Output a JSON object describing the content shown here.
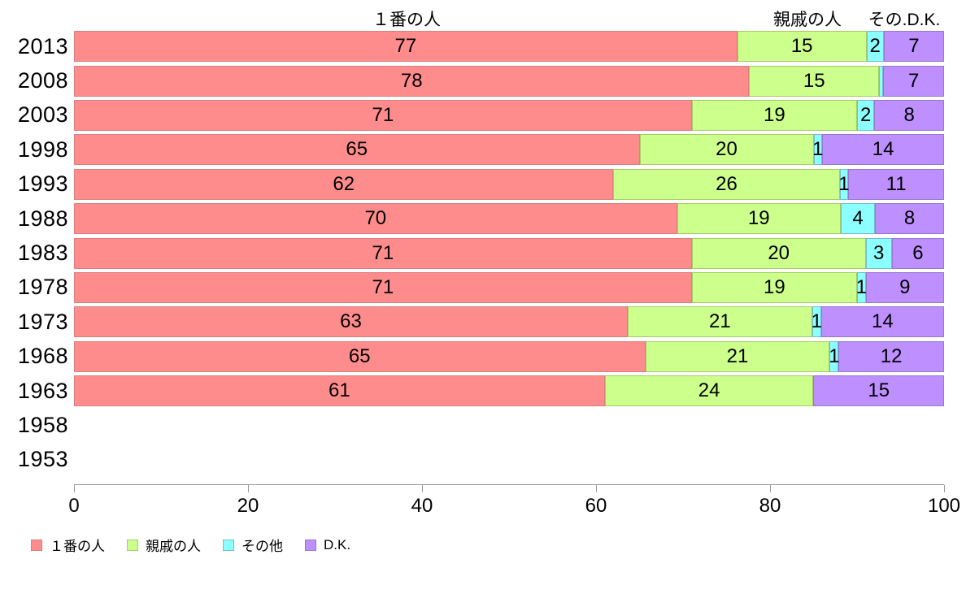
{
  "column_headers": [
    {
      "label": "１番の人"
    },
    {
      "label": "親戚の人"
    },
    {
      "label": "その.D.K."
    }
  ],
  "chart_data": {
    "type": "bar",
    "orientation": "horizontal",
    "stacked": true,
    "title": "",
    "xlabel": "",
    "ylabel": "",
    "xlim": [
      0,
      100
    ],
    "x_ticks": [
      0,
      20,
      40,
      60,
      80,
      100
    ],
    "grid": false,
    "legend_position": "bottom-left",
    "axis_color": "#999999",
    "text_color": "#000000",
    "categories": [
      "2013",
      "2008",
      "2003",
      "1998",
      "1993",
      "1988",
      "1983",
      "1978",
      "1973",
      "1968",
      "1963",
      "1958",
      "1953"
    ],
    "series": [
      {
        "name": "１番の人",
        "color": "#ff8c8c",
        "border": "#dd7e7e",
        "values": [
          77,
          78,
          71,
          65,
          62,
          70,
          71,
          71,
          63,
          65,
          61,
          null,
          null
        ]
      },
      {
        "name": "親戚の人",
        "color": "#ccff8c",
        "border": "#a6cc66",
        "values": [
          15,
          15,
          19,
          20,
          26,
          19,
          20,
          19,
          21,
          21,
          24,
          null,
          null
        ]
      },
      {
        "name": "その他",
        "color": "#8cffff",
        "border": "#77bbcc",
        "values": [
          2,
          0.5,
          2,
          1,
          1,
          4,
          3,
          1,
          1,
          1,
          0,
          null,
          null
        ],
        "labels": [
          "2",
          "",
          "2",
          "1",
          "1",
          "4",
          "3",
          "1",
          "1",
          "1",
          "",
          "",
          ""
        ]
      },
      {
        "name": "D.K.",
        "color": "#bd8fff",
        "border": "#9977cc",
        "values": [
          7,
          7,
          8,
          14,
          11,
          8,
          6,
          9,
          14,
          12,
          15,
          null,
          null
        ]
      }
    ],
    "legend": [
      "１番の人",
      "親戚の人",
      "その他",
      "D.K."
    ]
  }
}
